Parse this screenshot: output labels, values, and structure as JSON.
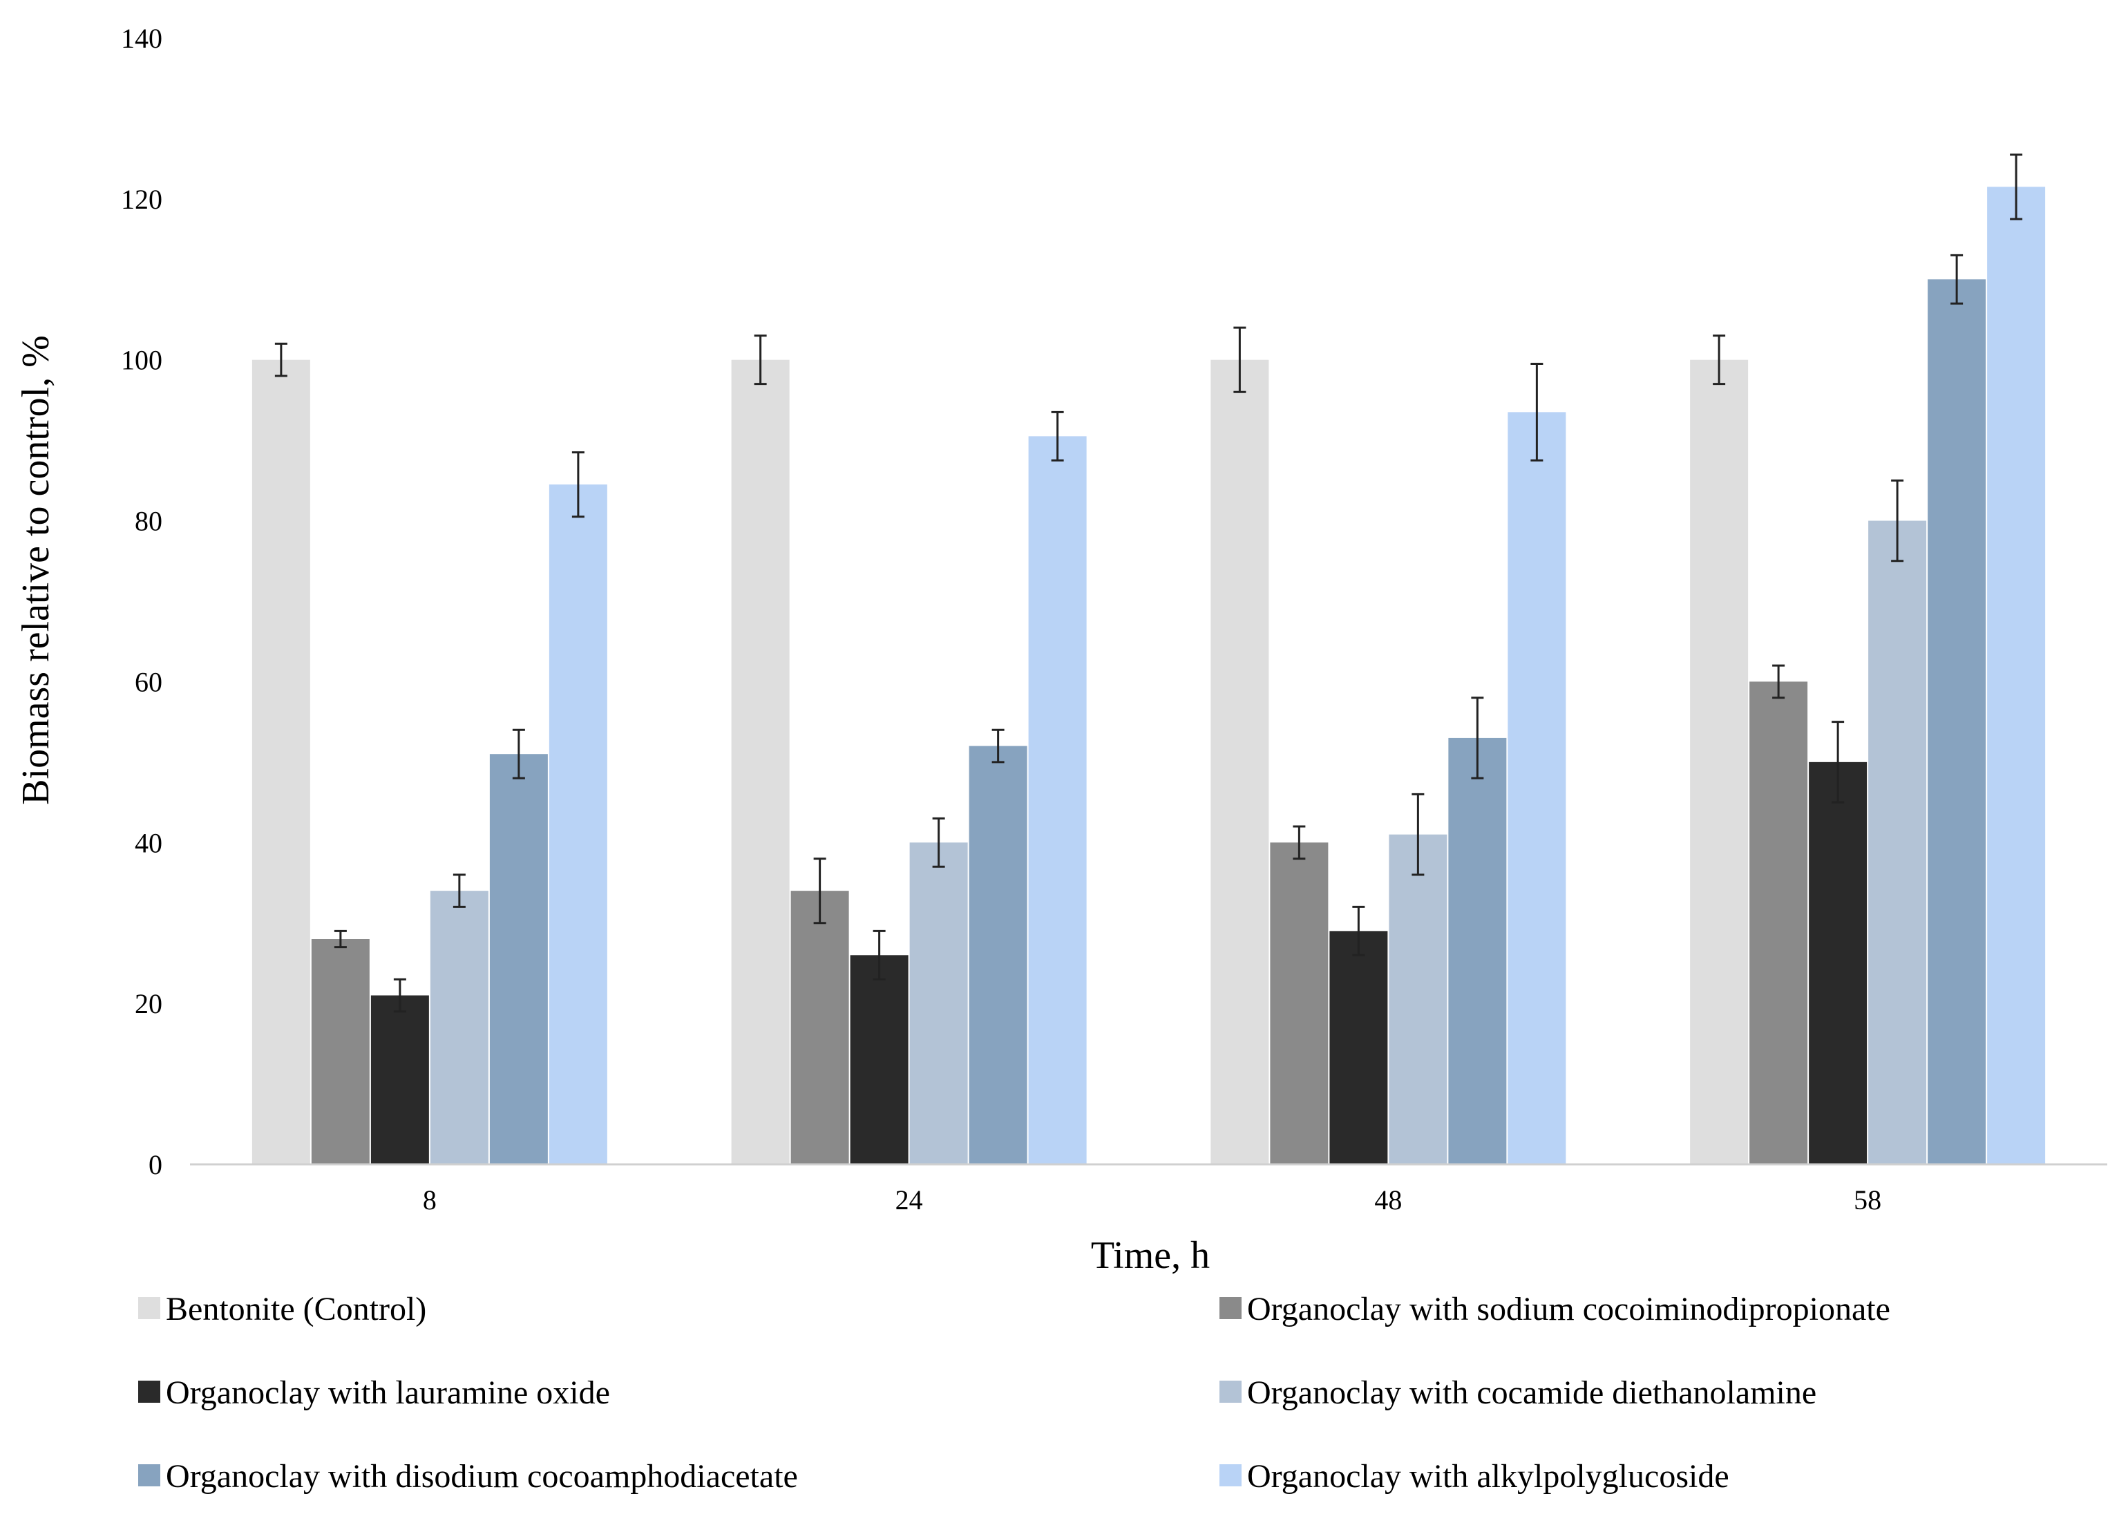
{
  "chart_data": {
    "type": "bar",
    "title": "",
    "xlabel": "Time, h",
    "ylabel": "Biomass relative to control, %",
    "ylim": [
      0,
      140
    ],
    "yticks": [
      0,
      20,
      40,
      60,
      80,
      100,
      120,
      140
    ],
    "categories": [
      "8",
      "24",
      "48",
      "58"
    ],
    "grid": false,
    "legend_position": "bottom",
    "series": [
      {
        "name": "Bentonite (Control)",
        "color": "#dedede",
        "values": [
          100,
          100,
          100,
          100
        ],
        "errors": [
          2,
          3,
          4,
          3
        ]
      },
      {
        "name": "Organoclay with sodium cocoiminodipropionate",
        "color": "#8a8a8a",
        "values": [
          28,
          34,
          40,
          60
        ],
        "errors": [
          1,
          4,
          2,
          2
        ]
      },
      {
        "name": "Organoclay with lauramine oxide",
        "color": "#2a2a2a",
        "values": [
          21,
          26,
          29,
          50
        ],
        "errors": [
          2,
          3,
          3,
          5
        ]
      },
      {
        "name": "Organoclay with cocamide diethanolamine",
        "color": "#b3c3d6",
        "values": [
          34,
          40,
          41,
          80
        ],
        "errors": [
          2,
          3,
          5,
          5
        ]
      },
      {
        "name": "Organoclay with disodium cocoamphodiacetate",
        "color": "#87a3bf",
        "values": [
          51,
          52,
          53,
          110
        ],
        "errors": [
          3,
          2,
          5,
          3
        ]
      },
      {
        "name": "Organoclay with alkylpolyglucoside",
        "color": "#b9d3f6",
        "values": [
          84.5,
          90.5,
          93.5,
          121.5
        ],
        "errors": [
          4,
          3,
          6,
          4
        ]
      }
    ]
  }
}
